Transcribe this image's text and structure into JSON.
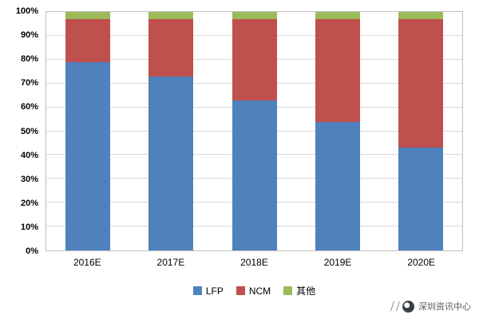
{
  "chart_data": {
    "type": "bar",
    "stacked": true,
    "percent": true,
    "title": "",
    "xlabel": "",
    "ylabel": "",
    "categories": [
      "2016E",
      "2017E",
      "2018E",
      "2019E",
      "2020E"
    ],
    "series": [
      {
        "name": "LFP",
        "color": "#4f81bd",
        "values": [
          79,
          73,
          63,
          54,
          43
        ]
      },
      {
        "name": "NCM",
        "color": "#c0504d",
        "values": [
          18,
          24,
          34,
          43,
          54
        ]
      },
      {
        "name": "其他",
        "color": "#9bbb59",
        "values": [
          3,
          3,
          3,
          3,
          3
        ]
      }
    ],
    "ylim": [
      0,
      100
    ],
    "ytick_step": 10,
    "ytick_labels": [
      "0%",
      "10%",
      "20%",
      "30%",
      "40%",
      "50%",
      "60%",
      "70%",
      "80%",
      "90%",
      "100%"
    ],
    "grid": true,
    "legend_position": "bottom"
  },
  "footer": {
    "watermark": "深圳资讯中心"
  }
}
